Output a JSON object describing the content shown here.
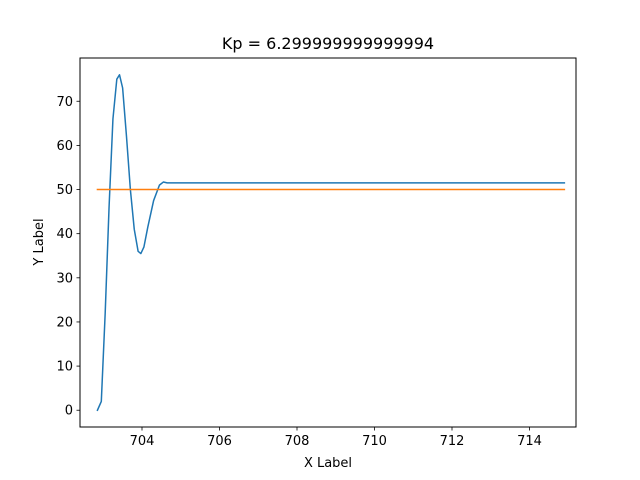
{
  "chart_data": {
    "type": "line",
    "title": "Kp = 6.299999999999994",
    "xlabel": "X Label",
    "ylabel": "Y Label",
    "xlim": [
      702.4,
      715.2
    ],
    "ylim": [
      -3.8,
      79.8
    ],
    "grid": false,
    "legend": "none",
    "x_ticks": [
      704,
      706,
      708,
      710,
      712,
      714
    ],
    "x_tick_labels": [
      "704",
      "706",
      "708",
      "710",
      "712",
      "714"
    ],
    "y_ticks": [
      0,
      10,
      20,
      30,
      40,
      50,
      60,
      70
    ],
    "y_tick_labels": [
      "0",
      "10",
      "20",
      "30",
      "40",
      "50",
      "60",
      "70"
    ],
    "series": [
      {
        "color": "#1f77b4",
        "x": [
          702.85,
          702.95,
          703.05,
          703.15,
          703.25,
          703.35,
          703.42,
          703.5,
          703.6,
          703.7,
          703.8,
          703.9,
          703.97,
          704.05,
          704.15,
          704.3,
          704.45,
          704.55,
          704.65,
          705.5,
          714.9
        ],
        "y": [
          0,
          2,
          22,
          46,
          66,
          75,
          76,
          73,
          62,
          50,
          41,
          36,
          35.5,
          37,
          41.5,
          47.5,
          51,
          51.7,
          51.5,
          51.5,
          51.5
        ]
      },
      {
        "color": "#ff7f0e",
        "x": [
          702.85,
          714.9
        ],
        "y": [
          50,
          50
        ]
      }
    ]
  }
}
